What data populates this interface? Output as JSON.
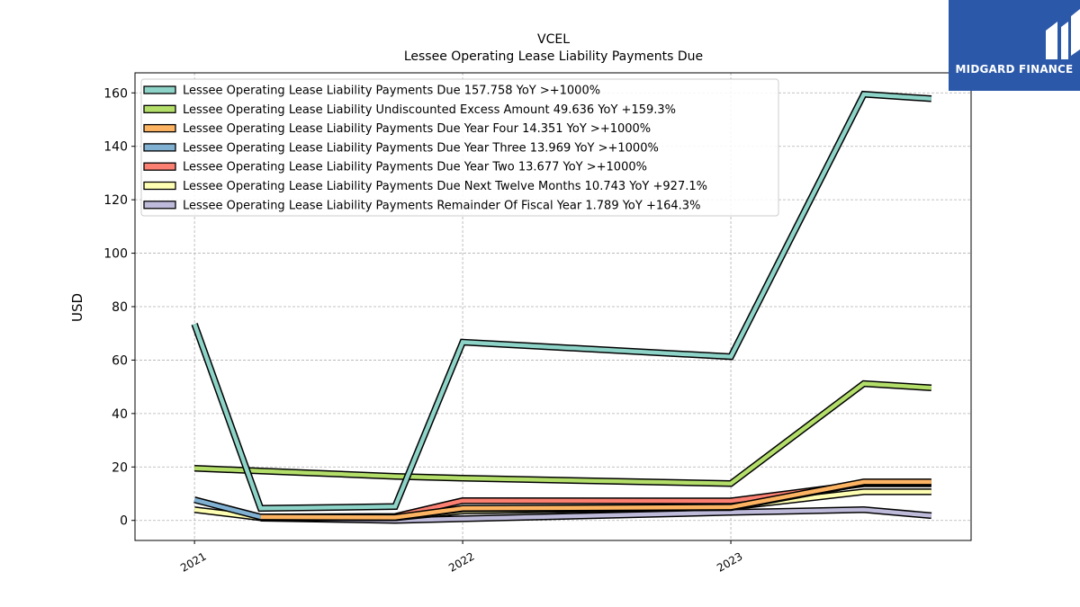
{
  "chart_data": {
    "type": "line",
    "title": "VCEL",
    "subtitle": "Lessee Operating Lease Liability Payments Due",
    "xlabel": "",
    "ylabel": "USD",
    "ylim": [
      -7.5,
      167.5
    ],
    "xlim": [
      "2020-10-12",
      "2023-11-24"
    ],
    "yticks": [
      0,
      20,
      40,
      60,
      80,
      100,
      120,
      140,
      160
    ],
    "xticks": [
      "2021",
      "2022",
      "2023"
    ],
    "xtick_dates": [
      "2021-01-01",
      "2022-01-01",
      "2023-01-01"
    ],
    "grid": true,
    "legend_placement": "top-left",
    "x": [
      "2021-01-01",
      "2021-04-01",
      "2021-10-01",
      "2022-01-01",
      "2023-01-01",
      "2023-07-01",
      "2023-10-01"
    ],
    "series": [
      {
        "name": "Lessee Operating Lease Liability Payments Due",
        "legend_label": "Lessee Operating Lease Liability Payments Due  157.758 YoY >+1000%",
        "color": "#8dd3c7",
        "values": [
          73.5,
          4.5,
          5.2,
          66.7,
          61.3,
          159.5,
          157.8
        ]
      },
      {
        "name": "Lessee Operating Lease Liability Undiscounted Excess Amount",
        "legend_label": "Lessee Operating Lease Liability Undiscounted Excess Amount  49.636 YoY +159.3%",
        "color": "#b3de69",
        "values": [
          19.5,
          18.5,
          16.5,
          15.8,
          13.8,
          51.2,
          49.6
        ]
      },
      {
        "name": "Lessee Operating Lease Liability Payments Due Year Four",
        "legend_label": "Lessee Operating Lease Liability Payments Due Year Four  14.351 YoY >+1000%",
        "color": "#fdb462",
        "values": [
          null,
          1.3,
          1.1,
          4.5,
          5.0,
          14.4,
          14.4
        ]
      },
      {
        "name": "Lessee Operating Lease Liability Payments Due Year Three",
        "legend_label": "Lessee Operating Lease Liability Payments Due Year Three  13.969 YoY >+1000%",
        "color": "#80b1d3",
        "values": [
          7.7,
          1.3,
          1.0,
          4.3,
          4.8,
          14.0,
          14.0
        ]
      },
      {
        "name": "Lessee Operating Lease Liability Payments Due Year Two",
        "legend_label": "Lessee Operating Lease Liability Payments Due Year Two  13.677 YoY >+1000%",
        "color": "#fb8072",
        "values": [
          null,
          1.3,
          1.5,
          7.4,
          7.3,
          13.7,
          13.7
        ]
      },
      {
        "name": "Lessee Operating Lease Liability Payments Due Next Twelve Months",
        "legend_label": "Lessee Operating Lease Liability Payments Due Next Twelve Months  10.743 YoY +927.1%",
        "color": "#ffffb3",
        "values": [
          4.0,
          1.0,
          1.0,
          3.5,
          5.0,
          10.7,
          10.7
        ]
      },
      {
        "name": "Lessee Operating Lease Liability Payments Remainder Of Fiscal Year",
        "legend_label": "Lessee Operating Lease Liability Payments Remainder Of Fiscal Year  1.789 YoY +164.3%",
        "color": "#bebada",
        "values": [
          null,
          0.8,
          0.0,
          0.6,
          3.0,
          4.0,
          1.8
        ]
      }
    ]
  },
  "logo": {
    "text": "MIDGARD FINANCE",
    "icon": "midgard-logo-icon",
    "background": "#2b58a8"
  }
}
